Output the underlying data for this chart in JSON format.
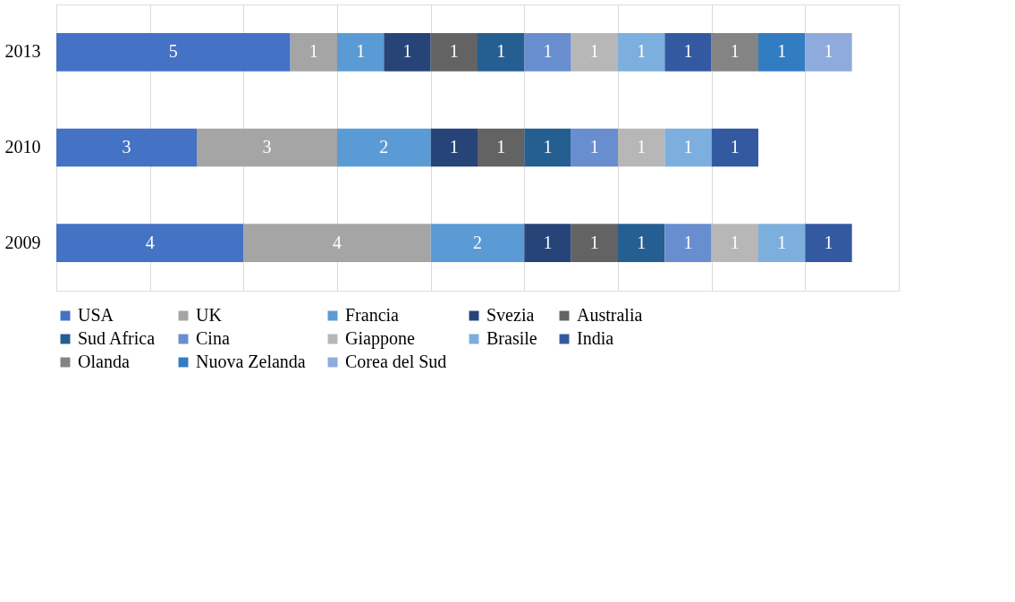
{
  "chart_data": {
    "type": "bar",
    "orientation": "horizontal",
    "stacked": true,
    "categories": [
      "2013",
      "2010",
      "2009"
    ],
    "series": [
      {
        "name": "USA",
        "color": "#4472c4",
        "values": [
          5,
          3,
          4
        ]
      },
      {
        "name": "UK",
        "color": "#a5a5a5",
        "values": [
          1,
          3,
          4
        ]
      },
      {
        "name": "Francia",
        "color": "#5b9bd5",
        "values": [
          1,
          2,
          2
        ]
      },
      {
        "name": "Svezia",
        "color": "#264478",
        "values": [
          1,
          1,
          1
        ]
      },
      {
        "name": "Australia",
        "color": "#636363",
        "values": [
          1,
          1,
          1
        ]
      },
      {
        "name": "Sud Africa",
        "color": "#255e91",
        "values": [
          1,
          1,
          1
        ]
      },
      {
        "name": "Cina",
        "color": "#698ed0",
        "values": [
          1,
          1,
          1
        ]
      },
      {
        "name": "Giappone",
        "color": "#b7b7b7",
        "values": [
          1,
          1,
          1
        ]
      },
      {
        "name": "Brasile",
        "color": "#7cafdd",
        "values": [
          1,
          1,
          1
        ]
      },
      {
        "name": "India",
        "color": "#335aa1",
        "values": [
          1,
          1,
          1
        ]
      },
      {
        "name": "Olanda",
        "color": "#848484",
        "values": [
          1,
          null,
          null
        ]
      },
      {
        "name": "Nuova Zelanda",
        "color": "#327dc2",
        "values": [
          1,
          null,
          null
        ]
      },
      {
        "name": "Corea del Sud",
        "color": "#8faadc",
        "values": [
          1,
          null,
          null
        ]
      }
    ],
    "xlim": [
      0,
      18
    ],
    "xticks": [
      {
        "value": 0,
        "label": null
      },
      {
        "value": 2,
        "label": null
      },
      {
        "value": 4,
        "label": null
      },
      {
        "value": 6,
        "label": null
      },
      {
        "value": 8,
        "label": null
      },
      {
        "value": 10,
        "label": null
      },
      {
        "value": 12,
        "label": null
      },
      {
        "value": 14,
        "label": null
      },
      {
        "value": 16,
        "label": null
      },
      {
        "value": 18,
        "label": null
      }
    ],
    "grid": "x",
    "legend": "bottom",
    "data_labels": true,
    "tick_labels": "y"
  }
}
